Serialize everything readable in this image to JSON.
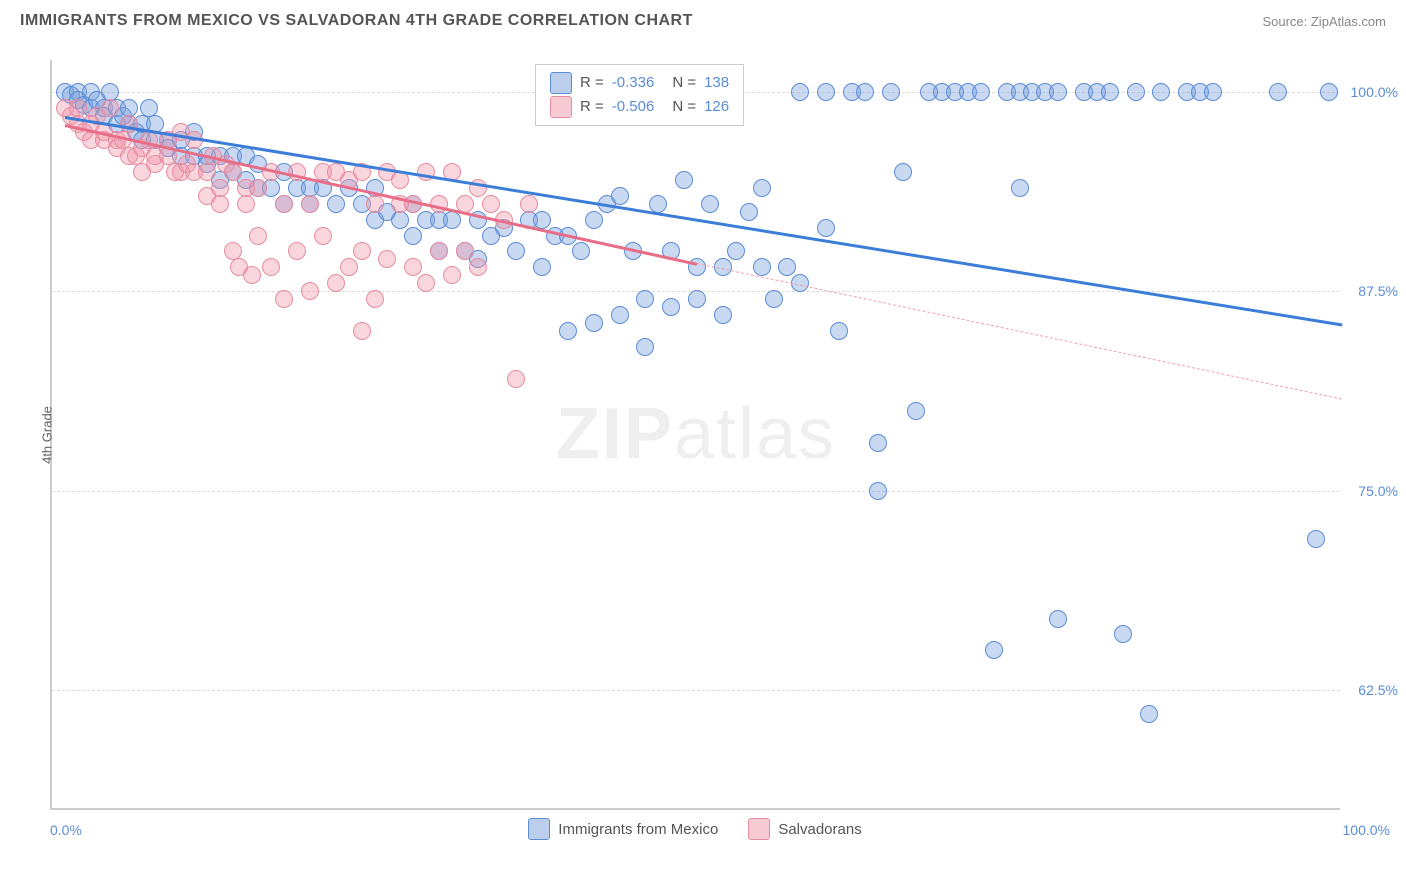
{
  "header": {
    "title": "IMMIGRANTS FROM MEXICO VS SALVADORAN 4TH GRADE CORRELATION CHART",
    "source_prefix": "Source: ",
    "source_name": "ZipAtlas.com"
  },
  "watermark": {
    "part1": "ZIP",
    "part2": "atlas"
  },
  "chart": {
    "type": "scatter",
    "ylabel": "4th Grade",
    "xlim": [
      0,
      100
    ],
    "ylim": [
      55,
      102
    ],
    "yticks": [
      62.5,
      75.0,
      87.5,
      100.0
    ],
    "ytick_labels": [
      "62.5%",
      "75.0%",
      "87.5%",
      "100.0%"
    ],
    "xtick_labels": {
      "left": "0.0%",
      "right": "100.0%"
    },
    "grid_color": "#dddddd",
    "axis_color": "#cccccc",
    "background_color": "#ffffff",
    "series": [
      {
        "name": "Immigrants from Mexico",
        "color_fill": "rgba(120,160,220,0.4)",
        "color_stroke": "#5b8dd6",
        "trend_color": "#3b7dd8",
        "r_value": "-0.336",
        "n_value": "138",
        "trend": {
          "x1": 1,
          "y1": 98.5,
          "x2": 100,
          "y2": 85.5
        },
        "points": [
          [
            1,
            100
          ],
          [
            1.5,
            99.8
          ],
          [
            2,
            100
          ],
          [
            2,
            99.5
          ],
          [
            2.5,
            99.2
          ],
          [
            3,
            100
          ],
          [
            3,
            99
          ],
          [
            3.5,
            99.5
          ],
          [
            4,
            99
          ],
          [
            4,
            98.5
          ],
          [
            4.5,
            100
          ],
          [
            5,
            99
          ],
          [
            5,
            98
          ],
          [
            5.5,
            98.5
          ],
          [
            6,
            98
          ],
          [
            6,
            99
          ],
          [
            6.5,
            97.5
          ],
          [
            7,
            98
          ],
          [
            7,
            97
          ],
          [
            7.5,
            99
          ],
          [
            8,
            97
          ],
          [
            8,
            98
          ],
          [
            9,
            97
          ],
          [
            9,
            96.5
          ],
          [
            10,
            97
          ],
          [
            10,
            96
          ],
          [
            11,
            96
          ],
          [
            11,
            97.5
          ],
          [
            12,
            96
          ],
          [
            12,
            95.5
          ],
          [
            13,
            96
          ],
          [
            13,
            94.5
          ],
          [
            14,
            96
          ],
          [
            14,
            95
          ],
          [
            15,
            94.5
          ],
          [
            15,
            96
          ],
          [
            16,
            94
          ],
          [
            16,
            95.5
          ],
          [
            17,
            94
          ],
          [
            18,
            95
          ],
          [
            18,
            93
          ],
          [
            19,
            94
          ],
          [
            20,
            94
          ],
          [
            20,
            93
          ],
          [
            21,
            94
          ],
          [
            22,
            93
          ],
          [
            23,
            94
          ],
          [
            24,
            93
          ],
          [
            25,
            92
          ],
          [
            25,
            94
          ],
          [
            26,
            92.5
          ],
          [
            27,
            92
          ],
          [
            28,
            93
          ],
          [
            28,
            91
          ],
          [
            29,
            92
          ],
          [
            30,
            92
          ],
          [
            30,
            90
          ],
          [
            31,
            92
          ],
          [
            32,
            90
          ],
          [
            33,
            92
          ],
          [
            33,
            89.5
          ],
          [
            34,
            91
          ],
          [
            35,
            91.5
          ],
          [
            36,
            90
          ],
          [
            37,
            92
          ],
          [
            38,
            92
          ],
          [
            38,
            89
          ],
          [
            39,
            91
          ],
          [
            40,
            91
          ],
          [
            40,
            85
          ],
          [
            41,
            90
          ],
          [
            42,
            92
          ],
          [
            42,
            85.5
          ],
          [
            43,
            93
          ],
          [
            44,
            93.5
          ],
          [
            44,
            86
          ],
          [
            45,
            90
          ],
          [
            46,
            87
          ],
          [
            46,
            84
          ],
          [
            47,
            93
          ],
          [
            48,
            90
          ],
          [
            48,
            86.5
          ],
          [
            49,
            94.5
          ],
          [
            50,
            87
          ],
          [
            50,
            89
          ],
          [
            51,
            93
          ],
          [
            52,
            89
          ],
          [
            52,
            86
          ],
          [
            53,
            90
          ],
          [
            54,
            92.5
          ],
          [
            55,
            89
          ],
          [
            55,
            94
          ],
          [
            56,
            87
          ],
          [
            57,
            89
          ],
          [
            58,
            88
          ],
          [
            58,
            100
          ],
          [
            60,
            100
          ],
          [
            60,
            91.5
          ],
          [
            61,
            85
          ],
          [
            62,
            100
          ],
          [
            63,
            100
          ],
          [
            64,
            78
          ],
          [
            64,
            75
          ],
          [
            65,
            100
          ],
          [
            66,
            95
          ],
          [
            67,
            80
          ],
          [
            68,
            100
          ],
          [
            69,
            100
          ],
          [
            70,
            100
          ],
          [
            71,
            100
          ],
          [
            72,
            100
          ],
          [
            73,
            65
          ],
          [
            74,
            100
          ],
          [
            75,
            94
          ],
          [
            75,
            100
          ],
          [
            76,
            100
          ],
          [
            77,
            100
          ],
          [
            78,
            100
          ],
          [
            78,
            67
          ],
          [
            80,
            100
          ],
          [
            81,
            100
          ],
          [
            82,
            100
          ],
          [
            83,
            66
          ],
          [
            84,
            100
          ],
          [
            85,
            61
          ],
          [
            86,
            100
          ],
          [
            88,
            100
          ],
          [
            89,
            100
          ],
          [
            90,
            100
          ],
          [
            95,
            100
          ],
          [
            98,
            72
          ],
          [
            99,
            100
          ]
        ]
      },
      {
        "name": "Salvadorans",
        "color_fill": "rgba(240,150,170,0.4)",
        "color_stroke": "#e88ca0",
        "trend_color": "#ea6d88",
        "r_value": "-0.506",
        "n_value": "126",
        "trend_solid": {
          "x1": 1,
          "y1": 98,
          "x2": 50,
          "y2": 89.3
        },
        "trend_dashed": {
          "x1": 50,
          "y1": 89.3,
          "x2": 100,
          "y2": 80.8
        },
        "points": [
          [
            1,
            99
          ],
          [
            1.5,
            98.5
          ],
          [
            2,
            99
          ],
          [
            2,
            98
          ],
          [
            2.5,
            97.5
          ],
          [
            3,
            98
          ],
          [
            3,
            97
          ],
          [
            3.5,
            98.5
          ],
          [
            4,
            97
          ],
          [
            4,
            97.5
          ],
          [
            4.5,
            99
          ],
          [
            5,
            97
          ],
          [
            5,
            96.5
          ],
          [
            5.5,
            97
          ],
          [
            6,
            96
          ],
          [
            6,
            98
          ],
          [
            6.5,
            96
          ],
          [
            7,
            96.5
          ],
          [
            7,
            95
          ],
          [
            7.5,
            97
          ],
          [
            8,
            95.5
          ],
          [
            8,
            96
          ],
          [
            9,
            96
          ],
          [
            9,
            97
          ],
          [
            9.5,
            95
          ],
          [
            10,
            95
          ],
          [
            10,
            97.5
          ],
          [
            10.5,
            95.5
          ],
          [
            11,
            95
          ],
          [
            11,
            97
          ],
          [
            12,
            95
          ],
          [
            12,
            93.5
          ],
          [
            12.5,
            96
          ],
          [
            13,
            94
          ],
          [
            13,
            93
          ],
          [
            13.5,
            95.5
          ],
          [
            14,
            90
          ],
          [
            14,
            95
          ],
          [
            14.5,
            89
          ],
          [
            15,
            94
          ],
          [
            15,
            93
          ],
          [
            15.5,
            88.5
          ],
          [
            16,
            94
          ],
          [
            16,
            91
          ],
          [
            17,
            95
          ],
          [
            17,
            89
          ],
          [
            18,
            93
          ],
          [
            18,
            87
          ],
          [
            19,
            95
          ],
          [
            19,
            90
          ],
          [
            20,
            93
          ],
          [
            20,
            87.5
          ],
          [
            21,
            95
          ],
          [
            21,
            91
          ],
          [
            22,
            88
          ],
          [
            22,
            95
          ],
          [
            23,
            94.5
          ],
          [
            23,
            89
          ],
          [
            24,
            90
          ],
          [
            24,
            95
          ],
          [
            24,
            85
          ],
          [
            25,
            93
          ],
          [
            25,
            87
          ],
          [
            26,
            95
          ],
          [
            26,
            89.5
          ],
          [
            27,
            93
          ],
          [
            27,
            94.5
          ],
          [
            28,
            89
          ],
          [
            28,
            93
          ],
          [
            29,
            88
          ],
          [
            29,
            95
          ],
          [
            30,
            90
          ],
          [
            30,
            93
          ],
          [
            31,
            95
          ],
          [
            31,
            88.5
          ],
          [
            32,
            93
          ],
          [
            32,
            90
          ],
          [
            33,
            94
          ],
          [
            33,
            89
          ],
          [
            34,
            93
          ],
          [
            35,
            92
          ],
          [
            36,
            82
          ],
          [
            37,
            93
          ]
        ]
      }
    ],
    "legend_box": {
      "r_label": "R = ",
      "n_label": "N = "
    },
    "bottom_legend": [
      {
        "label": "Immigrants from Mexico",
        "swatch_class": "blue"
      },
      {
        "label": "Salvadorans",
        "swatch_class": "pink"
      }
    ]
  }
}
